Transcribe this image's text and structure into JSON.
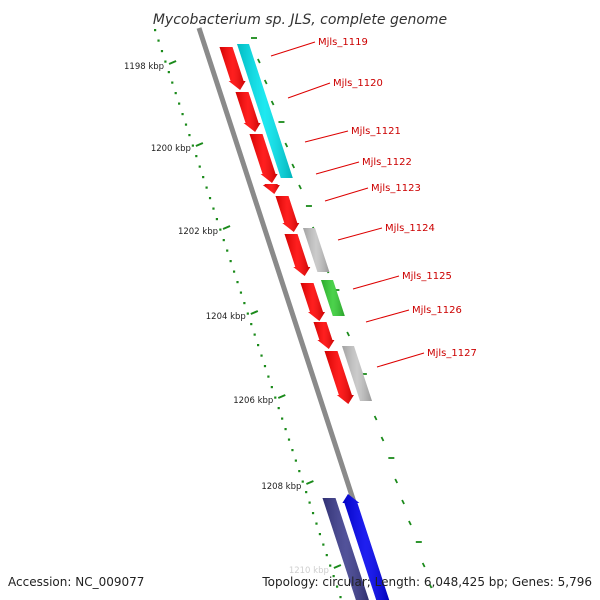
{
  "title": "Mycobacterium sp. JLS, complete genome",
  "footer": {
    "accession": "Accession: NC_009077",
    "summary": "Topology: circular; Length: 6,048,425 bp; Genes: 5,796"
  },
  "scale_labels": [
    "1198 kbp",
    "1200 kbp",
    "1202 kbp",
    "1204 kbp",
    "1206 kbp",
    "1208 kbp",
    "1210 kbp"
  ],
  "genes": [
    {
      "label": "Mjls_1119",
      "color": "#ff0000"
    },
    {
      "label": "Mjls_1120",
      "color": "#ff0000"
    },
    {
      "label": "Mjls_1121",
      "color": "#ff0000"
    },
    {
      "label": "Mjls_1122",
      "color": "#ff0000"
    },
    {
      "label": "Mjls_1123",
      "color": "#ff0000"
    },
    {
      "label": "Mjls_1124",
      "color": "#ff0000"
    },
    {
      "label": "Mjls_1125",
      "color": "#ff0000"
    },
    {
      "label": "Mjls_1126",
      "color": "#ff0000"
    },
    {
      "label": "Mjls_1127",
      "color": "#ff0000"
    }
  ],
  "colors": {
    "backbone": "#8a8a8a",
    "scale_ticks": "#1a8a1a",
    "label_line": "#dd0000",
    "cds_cyan": "#00e5ee",
    "cds_gray": "#c4c4c4",
    "cds_green": "#33cc33",
    "cds_navy": "#3b3b8c",
    "cds_blue": "#0000ee"
  }
}
